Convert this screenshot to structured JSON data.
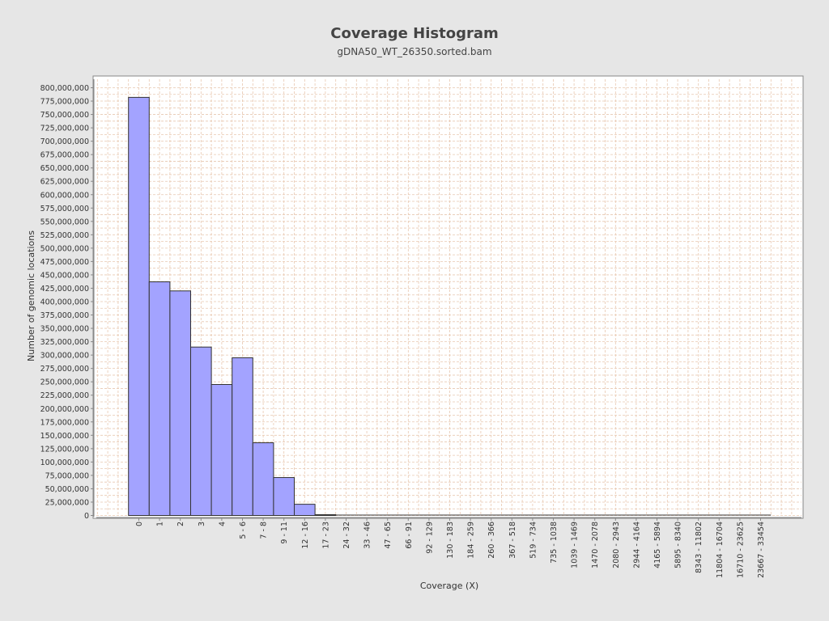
{
  "chart_data": {
    "type": "bar",
    "title": "Coverage Histogram",
    "subtitle": "gDNA50_WT_26350.sorted.bam",
    "xlabel": "Coverage (X)",
    "ylabel": "Number of genomic locations",
    "ylim": [
      0,
      810000000
    ],
    "yticks": [
      0,
      25000000,
      50000000,
      75000000,
      100000000,
      125000000,
      150000000,
      175000000,
      200000000,
      225000000,
      250000000,
      275000000,
      300000000,
      325000000,
      350000000,
      375000000,
      400000000,
      425000000,
      450000000,
      475000000,
      500000000,
      525000000,
      550000000,
      575000000,
      600000000,
      625000000,
      650000000,
      675000000,
      700000000,
      725000000,
      750000000,
      775000000,
      800000000
    ],
    "ytick_labels": [
      "0",
      "25,000,000",
      "50,000,000",
      "75,000,000",
      "100,000,000",
      "125,000,000",
      "150,000,000",
      "175,000,000",
      "200,000,000",
      "225,000,000",
      "250,000,000",
      "275,000,000",
      "300,000,000",
      "325,000,000",
      "350,000,000",
      "375,000,000",
      "400,000,000",
      "425,000,000",
      "450,000,000",
      "475,000,000",
      "500,000,000",
      "525,000,000",
      "550,000,000",
      "575,000,000",
      "600,000,000",
      "625,000,000",
      "650,000,000",
      "675,000,000",
      "700,000,000",
      "725,000,000",
      "750,000,000",
      "775,000,000",
      "800,000,000"
    ],
    "categories": [
      "0",
      "1",
      "2",
      "3",
      "4",
      "5 - 6",
      "7 - 8",
      "9 - 11",
      "12 - 16",
      "17 - 23",
      "24 - 32",
      "33 - 46",
      "47 - 65",
      "66 - 91",
      "92 - 129",
      "130 - 183",
      "184 - 259",
      "260 - 366",
      "367 - 518",
      "519 - 734",
      "735 - 1038",
      "1039 - 1469",
      "1470 - 2078",
      "2080 - 2943",
      "2944 - 4164",
      "4165 - 5894",
      "5895 - 8340",
      "8343 - 11802",
      "11804 - 16704",
      "16710 - 23625",
      "23667 - 33454"
    ],
    "values": [
      782000000,
      437000000,
      420000000,
      315000000,
      245000000,
      295000000,
      136000000,
      71000000,
      21000000,
      1500000,
      300000,
      100000,
      50000,
      20000,
      10000,
      5000,
      3000,
      2000,
      1000,
      800,
      500,
      300,
      200,
      100,
      80,
      50,
      30,
      20,
      10,
      5,
      2
    ],
    "bar_color": "#a3a3ff",
    "bar_edge_color": "#333333",
    "plot_background": "#ffffff",
    "gridlines": true,
    "legend": "none"
  }
}
